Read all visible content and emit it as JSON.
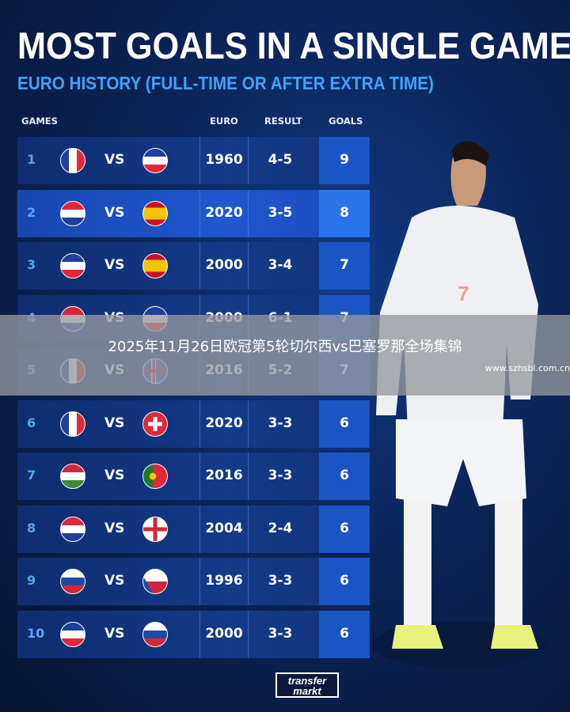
{
  "header": {
    "title": "MOST GOALS IN A SINGLE GAME",
    "subtitle": "EURO HISTORY (FULL-TIME OR AFTER EXTRA TIME)"
  },
  "columns": {
    "games": "GAMES",
    "euro": "EURO",
    "result": "RESULT",
    "goals": "GOALS"
  },
  "vs_label": "VS",
  "rows": [
    {
      "rank": "1",
      "flag1": "france-flag",
      "flag2": "yugoslavia-flag",
      "euro": "1960",
      "result": "4-5",
      "goals": "9"
    },
    {
      "rank": "2",
      "flag1": "croatia-flag",
      "flag2": "spain-flag",
      "euro": "2020",
      "result": "3-5",
      "goals": "8"
    },
    {
      "rank": "3",
      "flag1": "yugoslavia-flag",
      "flag2": "spain-flag",
      "euro": "2000",
      "result": "3-4",
      "goals": "7"
    },
    {
      "rank": "4",
      "flag1": "netherlands-flag",
      "flag2": "yugoslavia-flag",
      "euro": "2000",
      "result": "6-1",
      "goals": "7"
    },
    {
      "rank": "5",
      "flag1": "france-flag",
      "flag2": "iceland-flag",
      "euro": "2016",
      "result": "5-2",
      "goals": "7"
    },
    {
      "rank": "6",
      "flag1": "france-flag",
      "flag2": "switzerland-flag",
      "euro": "2020",
      "result": "3-3",
      "goals": "6"
    },
    {
      "rank": "7",
      "flag1": "hungary-flag",
      "flag2": "portugal-flag",
      "euro": "2016",
      "result": "3-3",
      "goals": "6"
    },
    {
      "rank": "8",
      "flag1": "croatia-flag",
      "flag2": "england-flag",
      "euro": "2004",
      "result": "2-4",
      "goals": "6"
    },
    {
      "rank": "9",
      "flag1": "russia-flag",
      "flag2": "czech-flag",
      "euro": "1996",
      "result": "3-3",
      "goals": "6"
    },
    {
      "rank": "10",
      "flag1": "yugoslavia-flag",
      "flag2": "slovenia-flag",
      "euro": "2000",
      "result": "3-3",
      "goals": "6"
    }
  ],
  "overlay": {
    "caption": "2025年11月26日欧冠第5轮切尔西vs巴塞罗那全场集锦",
    "watermark": "www.szhsbl.com.cn"
  },
  "logo": {
    "line1": "transfer",
    "line2": "markt"
  },
  "colors": {
    "accent": "#3fa3ff",
    "row": "#143a88",
    "goals_col": "#1a55c4"
  }
}
